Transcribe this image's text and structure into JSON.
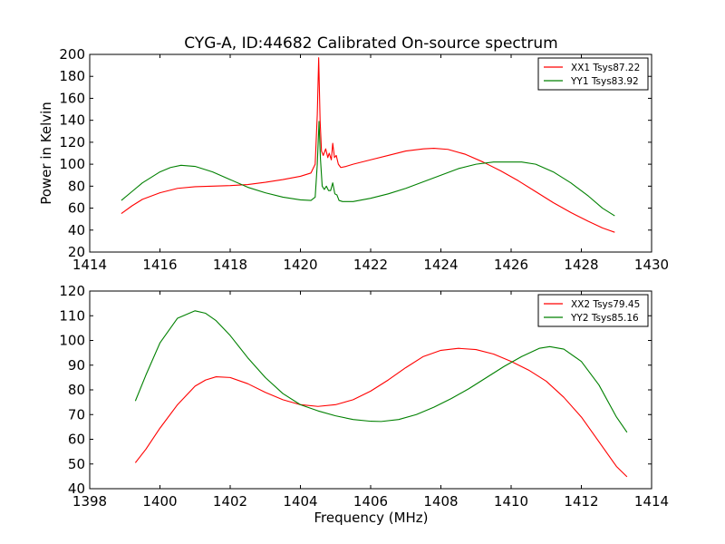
{
  "chart_data": [
    {
      "type": "line",
      "title": "CYG-A, ID:44682 Calibrated On-source spectrum",
      "xlabel": "",
      "ylabel": "Power in Kelvin",
      "xlim": [
        1414,
        1430
      ],
      "ylim": [
        20,
        200
      ],
      "xticks": [
        "1414",
        "1416",
        "1418",
        "1420",
        "1422",
        "1424",
        "1426",
        "1428",
        "1430"
      ],
      "yticks": [
        "20",
        "40",
        "60",
        "80",
        "100",
        "120",
        "140",
        "160",
        "180",
        "200"
      ],
      "grid": false,
      "legend_position": "top-right",
      "series": [
        {
          "name": "XX1 Tsys87.22",
          "color": "#ff0000",
          "x": [
            1414.9,
            1415.2,
            1415.5,
            1416.0,
            1416.5,
            1417.0,
            1417.5,
            1418.0,
            1418.5,
            1419.0,
            1419.5,
            1420.0,
            1420.3,
            1420.42,
            1420.48,
            1420.52,
            1420.56,
            1420.6,
            1420.65,
            1420.72,
            1420.78,
            1420.82,
            1420.88,
            1420.92,
            1420.97,
            1421.02,
            1421.08,
            1421.15,
            1421.3,
            1421.5,
            1422.0,
            1422.5,
            1423.0,
            1423.5,
            1423.8,
            1424.2,
            1424.7,
            1425.2,
            1425.7,
            1426.2,
            1426.7,
            1427.2,
            1427.7,
            1428.2,
            1428.6,
            1428.95
          ],
          "y": [
            55,
            62,
            68,
            74,
            78,
            79.5,
            80,
            80.5,
            81.5,
            83.5,
            86,
            89,
            92,
            100,
            145,
            197,
            140,
            112,
            108,
            114,
            106,
            110,
            104,
            119,
            106,
            108,
            100,
            97,
            98,
            100,
            104,
            108,
            112,
            114,
            114.5,
            113.5,
            109,
            102,
            94,
            85,
            75,
            65,
            56,
            48,
            42,
            38
          ]
        },
        {
          "name": "YY1 Tsys83.92",
          "color": "#008000",
          "x": [
            1414.9,
            1415.2,
            1415.5,
            1416.0,
            1416.3,
            1416.6,
            1417.0,
            1417.5,
            1418.0,
            1418.5,
            1419.0,
            1419.5,
            1420.0,
            1420.3,
            1420.42,
            1420.48,
            1420.53,
            1420.57,
            1420.62,
            1420.68,
            1420.74,
            1420.8,
            1420.86,
            1420.92,
            1420.98,
            1421.04,
            1421.1,
            1421.2,
            1421.5,
            1422.0,
            1422.5,
            1423.0,
            1423.5,
            1424.0,
            1424.5,
            1425.0,
            1425.5,
            1426.0,
            1426.3,
            1426.7,
            1427.2,
            1427.7,
            1428.2,
            1428.6,
            1428.95
          ],
          "y": [
            67,
            75,
            83,
            93,
            97,
            99,
            98,
            93,
            86,
            79,
            74,
            70,
            67.5,
            67,
            70,
            100,
            139,
            105,
            80,
            77,
            80,
            76,
            76,
            83,
            73,
            72,
            67,
            66,
            66,
            69,
            73,
            78,
            84,
            90,
            96,
            100,
            102,
            102,
            102,
            100,
            93,
            83,
            71,
            60,
            53
          ]
        }
      ]
    },
    {
      "type": "line",
      "title": "",
      "xlabel": "Frequency (MHz)",
      "ylabel": "",
      "xlim": [
        1398,
        1414
      ],
      "ylim": [
        40,
        120
      ],
      "xticks": [
        "1398",
        "1400",
        "1402",
        "1404",
        "1406",
        "1408",
        "1410",
        "1412",
        "1414"
      ],
      "yticks": [
        "40",
        "50",
        "60",
        "70",
        "80",
        "90",
        "100",
        "110",
        "120"
      ],
      "grid": false,
      "legend_position": "top-right",
      "series": [
        {
          "name": "XX2 Tsys79.45",
          "color": "#ff0000",
          "x": [
            1399.3,
            1399.6,
            1400.0,
            1400.5,
            1401.0,
            1401.3,
            1401.6,
            1402.0,
            1402.5,
            1403.0,
            1403.5,
            1404.0,
            1404.5,
            1405.0,
            1405.5,
            1406.0,
            1406.5,
            1407.0,
            1407.5,
            1408.0,
            1408.5,
            1409.0,
            1409.5,
            1410.0,
            1410.5,
            1411.0,
            1411.5,
            1412.0,
            1412.5,
            1413.0,
            1413.3
          ],
          "y": [
            50.5,
            56,
            64.5,
            74,
            81.5,
            84,
            85.3,
            85,
            82.5,
            79,
            76,
            74,
            73.3,
            74,
            76,
            79.5,
            84,
            89,
            93.5,
            96,
            96.8,
            96.3,
            94.5,
            91.5,
            88,
            83.5,
            77,
            69,
            59,
            49,
            44.8
          ]
        },
        {
          "name": "YY2 Tsys85.16",
          "color": "#008000",
          "x": [
            1399.3,
            1399.6,
            1400.0,
            1400.5,
            1401.0,
            1401.3,
            1401.6,
            1402.0,
            1402.5,
            1403.0,
            1403.5,
            1404.0,
            1404.5,
            1405.0,
            1405.5,
            1406.0,
            1406.3,
            1406.8,
            1407.3,
            1407.8,
            1408.3,
            1408.8,
            1409.3,
            1409.8,
            1410.3,
            1410.8,
            1411.1,
            1411.5,
            1412.0,
            1412.5,
            1413.0,
            1413.3
          ],
          "y": [
            75.5,
            86,
            99,
            109,
            112,
            111,
            108,
            102,
            93,
            85,
            78.5,
            74,
            71.5,
            69.5,
            68,
            67.3,
            67.2,
            68,
            70,
            73,
            76.5,
            80.5,
            85,
            89.5,
            93.5,
            96.8,
            97.5,
            96.5,
            91.5,
            82,
            69,
            62.8
          ]
        }
      ]
    }
  ]
}
